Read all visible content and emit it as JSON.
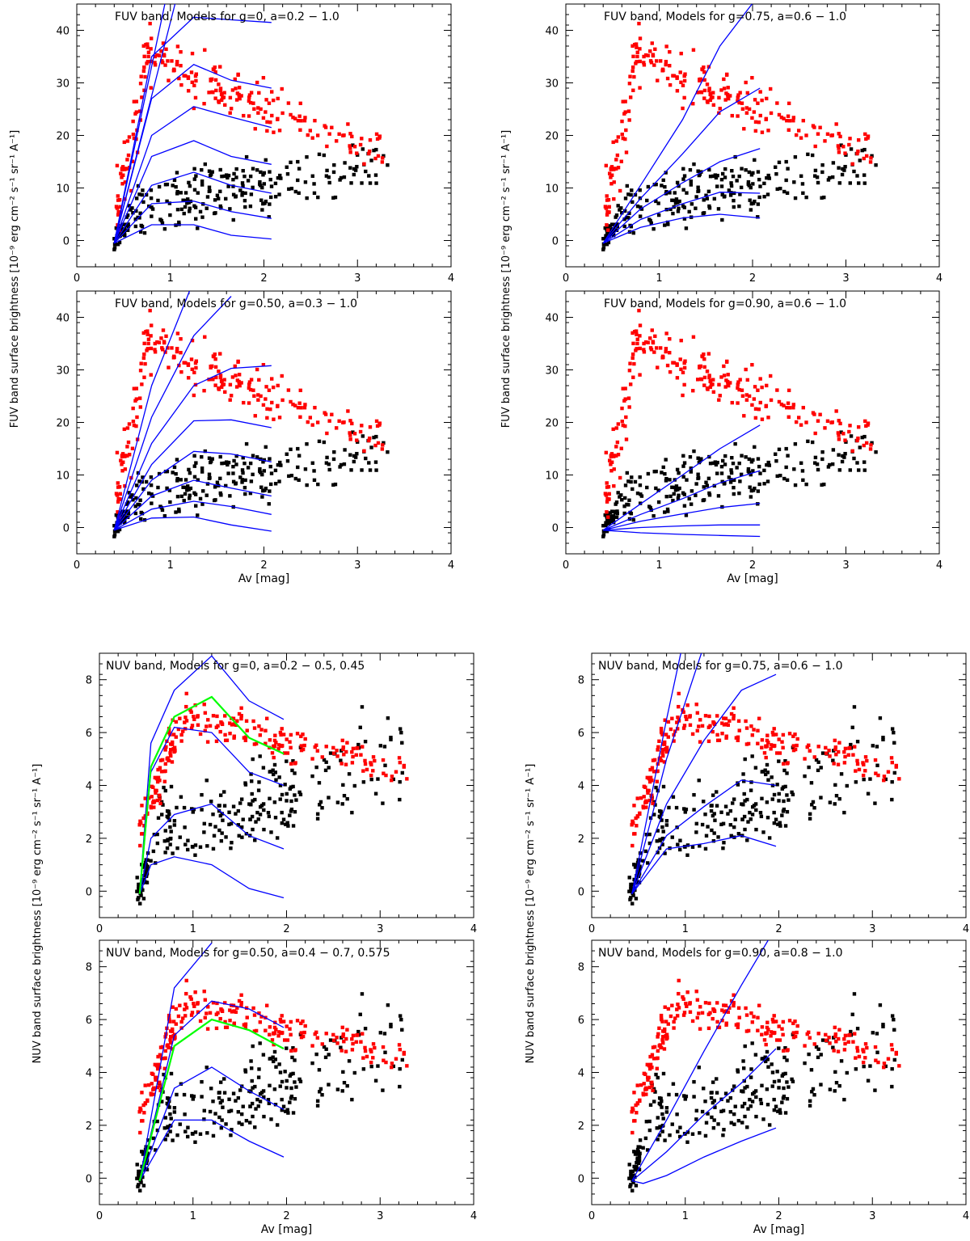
{
  "figure": {
    "fuv_ylabel": "FUV band surface brightness [10⁻⁹ erg cm⁻² s⁻¹ sr⁻¹ A⁻¹]",
    "nuv_ylabel": "NUV band surface brightness [10⁻⁹ erg cm⁻² s⁻¹ sr⁻¹ A⁻¹]",
    "xlabel": "Av [mag]",
    "colors": {
      "observed_red": "#ff0000",
      "observed_black": "#000000",
      "model_blue": "#0000ff",
      "model_green": "#00ff00"
    }
  },
  "chart_data": [
    {
      "type": "scatter",
      "title": "FUV band, Models for g=0, a=0.2 − 1.0",
      "xlabel": "",
      "ylabel": "FUV band surface brightness [10⁻⁹ erg cm⁻² s⁻¹ sr⁻¹ A⁻¹]",
      "xlim": [
        0,
        4
      ],
      "ylim": [
        -5,
        45
      ],
      "xticks": [
        "0",
        "1",
        "2",
        "3",
        "4"
      ],
      "yticks": [
        "0",
        "10",
        "20",
        "30",
        "40"
      ],
      "ytick_values": [
        0,
        10,
        20,
        30,
        40
      ],
      "model_lines": [
        {
          "x": [
            0.4,
            1.0
          ],
          "y": [
            -0.5,
            50
          ]
        },
        {
          "x": [
            0.4,
            1.05,
            1.25
          ],
          "y": [
            -0.5,
            45,
            48
          ]
        },
        {
          "x": [
            0.4,
            0.8,
            1.25,
            1.65,
            2.08
          ],
          "y": [
            -0.5,
            35,
            42.5,
            42,
            41.5
          ]
        },
        {
          "x": [
            0.4,
            0.8,
            1.25,
            1.65,
            2.08
          ],
          "y": [
            -0.5,
            27,
            33.5,
            30.5,
            29
          ]
        },
        {
          "x": [
            0.4,
            0.8,
            1.25,
            1.65,
            2.08
          ],
          "y": [
            -0.5,
            20,
            25.5,
            23.5,
            21.5
          ]
        },
        {
          "x": [
            0.4,
            0.8,
            1.25,
            1.65,
            2.08
          ],
          "y": [
            -0.5,
            16,
            19,
            16,
            14.5
          ]
        },
        {
          "x": [
            0.4,
            0.8,
            1.25,
            1.65,
            2.08
          ],
          "y": [
            -0.5,
            10.5,
            13,
            10.5,
            9
          ]
        },
        {
          "x": [
            0.4,
            0.8,
            1.25,
            1.65,
            2.08
          ],
          "y": [
            -0.5,
            7,
            7.5,
            5.5,
            4.2
          ]
        },
        {
          "x": [
            0.4,
            0.8,
            1.25,
            1.65,
            2.08
          ],
          "y": [
            -0.5,
            3,
            3,
            1,
            0.3
          ]
        }
      ],
      "green_line": null
    },
    {
      "type": "scatter",
      "title": "FUV band, Models for g=0.75, a=0.6 − 1.0",
      "xlabel": "",
      "ylabel": "",
      "xlim": [
        0,
        4
      ],
      "ylim": [
        -5,
        45
      ],
      "xticks": [
        "0",
        "1",
        "2",
        "3",
        "4"
      ],
      "yticks": [
        "0",
        "10",
        "20",
        "30",
        "40"
      ],
      "ytick_values": [
        0,
        10,
        20,
        30,
        40
      ],
      "model_lines": [
        {
          "x": [
            0.4,
            0.8,
            1.25,
            1.65,
            2.08
          ],
          "y": [
            -0.5,
            10.5,
            23,
            37,
            47
          ]
        },
        {
          "x": [
            0.4,
            0.8,
            1.25,
            1.65,
            2.08
          ],
          "y": [
            -0.5,
            8,
            16.5,
            24.5,
            29
          ]
        },
        {
          "x": [
            0.4,
            0.8,
            1.25,
            1.65,
            2.08
          ],
          "y": [
            -0.5,
            6,
            11,
            15,
            17.5
          ]
        },
        {
          "x": [
            0.4,
            0.8,
            1.25,
            1.65,
            2.08
          ],
          "y": [
            -0.5,
            4,
            7,
            9.2,
            9
          ]
        },
        {
          "x": [
            0.4,
            0.8,
            1.25,
            1.65,
            2.08
          ],
          "y": [
            -0.5,
            2.5,
            4.3,
            5,
            4.3
          ]
        }
      ],
      "green_line": null
    },
    {
      "type": "scatter",
      "title": "FUV band, Models for g=0.50, a=0.3 − 1.0",
      "xlabel": "Av [mag]",
      "ylabel": "",
      "xlim": [
        0,
        4
      ],
      "ylim": [
        -5,
        45
      ],
      "xticks": [
        "0",
        "1",
        "2",
        "3",
        "4"
      ],
      "yticks": [
        "0",
        "10",
        "20",
        "30",
        "40"
      ],
      "ytick_values": [
        0,
        10,
        20,
        30,
        40
      ],
      "model_lines": [
        {
          "x": [
            0.4,
            0.8,
            1.25
          ],
          "y": [
            -0.5,
            27,
            47
          ]
        },
        {
          "x": [
            0.4,
            0.8,
            1.25,
            1.65
          ],
          "y": [
            -0.5,
            21,
            36.5,
            44
          ]
        },
        {
          "x": [
            0.4,
            0.8,
            1.25,
            1.65,
            2.08
          ],
          "y": [
            -0.5,
            16,
            27,
            30.3,
            30.8
          ]
        },
        {
          "x": [
            0.4,
            0.8,
            1.25,
            1.65,
            2.08
          ],
          "y": [
            -0.5,
            12,
            20.3,
            20.5,
            19
          ]
        },
        {
          "x": [
            0.4,
            0.8,
            1.25,
            1.65,
            2.08
          ],
          "y": [
            -0.5,
            9,
            14.5,
            14,
            12.5
          ]
        },
        {
          "x": [
            0.4,
            0.8,
            1.25,
            1.65,
            2.08
          ],
          "y": [
            -0.5,
            6,
            9,
            7.5,
            6
          ]
        },
        {
          "x": [
            0.4,
            0.8,
            1.25,
            1.65,
            2.08
          ],
          "y": [
            -0.5,
            3.5,
            5,
            4,
            2.5
          ]
        },
        {
          "x": [
            0.4,
            0.8,
            1.25,
            1.65,
            2.08
          ],
          "y": [
            -0.5,
            1.8,
            2,
            0.5,
            -0.7
          ]
        }
      ],
      "green_line": null
    },
    {
      "type": "scatter",
      "title": "FUV band, Models for g=0.90, a=0.6 − 1.0",
      "xlabel": "Av [mag]",
      "ylabel": "",
      "xlim": [
        0,
        4
      ],
      "ylim": [
        -5,
        45
      ],
      "xticks": [
        "0",
        "1",
        "2",
        "3",
        "4"
      ],
      "yticks": [
        "0",
        "10",
        "20",
        "30",
        "40"
      ],
      "ytick_values": [
        0,
        10,
        20,
        30,
        40
      ],
      "model_lines": [
        {
          "x": [
            0.4,
            0.8,
            1.25,
            1.65,
            2.08
          ],
          "y": [
            -0.5,
            4.5,
            10,
            15,
            19.5
          ]
        },
        {
          "x": [
            0.4,
            0.8,
            1.25,
            1.65,
            2.08
          ],
          "y": [
            -0.5,
            2.5,
            5.5,
            8.5,
            10.8
          ]
        },
        {
          "x": [
            0.4,
            0.8,
            1.25,
            1.65,
            2.08
          ],
          "y": [
            -0.5,
            1.2,
            2.6,
            3.8,
            4.6
          ]
        },
        {
          "x": [
            0.4,
            0.8,
            1.25,
            1.65,
            2.08
          ],
          "y": [
            -0.5,
            0,
            0.3,
            0.5,
            0.5
          ]
        },
        {
          "x": [
            0.4,
            0.8,
            1.25,
            1.65,
            2.08
          ],
          "y": [
            -0.5,
            -1,
            -1.3,
            -1.5,
            -1.7
          ]
        }
      ],
      "green_line": null
    },
    {
      "type": "scatter",
      "title": "NUV band, Models for g=0, a=0.2 − 0.5, 0.45",
      "xlabel": "",
      "ylabel": "NUV band surface brightness [10⁻⁹ erg cm⁻² s⁻¹ sr⁻¹ A⁻¹]",
      "xlim": [
        0,
        4
      ],
      "ylim": [
        -1,
        9
      ],
      "xticks": [
        "0",
        "1",
        "2",
        "3",
        "4"
      ],
      "yticks": [
        "0",
        "2",
        "4",
        "6",
        "8"
      ],
      "ytick_values": [
        0,
        2,
        4,
        6,
        8
      ],
      "model_lines": [
        {
          "x": [
            0.43,
            0.55,
            0.8,
            1.2,
            1.6,
            1.97
          ],
          "y": [
            -0.1,
            5.6,
            7.6,
            8.9,
            7.2,
            6.5
          ]
        },
        {
          "x": [
            0.43,
            0.55,
            0.8,
            1.2,
            1.6,
            1.97
          ],
          "y": [
            -0.1,
            4.5,
            6.2,
            6.0,
            4.5,
            4.0
          ]
        },
        {
          "x": [
            0.43,
            0.55,
            0.8,
            1.2,
            1.6,
            1.97
          ],
          "y": [
            -0.1,
            2.0,
            2.9,
            3.3,
            2.1,
            1.6
          ]
        },
        {
          "x": [
            0.43,
            0.55,
            0.8,
            1.2,
            1.6,
            1.97
          ],
          "y": [
            -0.1,
            1.0,
            1.3,
            1.0,
            0.1,
            -0.25
          ]
        }
      ],
      "green_line": {
        "x": [
          0.43,
          0.55,
          0.8,
          1.2,
          1.6,
          1.97
        ],
        "y": [
          -0.1,
          4.7,
          6.6,
          7.35,
          5.8,
          5.2
        ]
      }
    },
    {
      "type": "scatter",
      "title": "NUV band, Models for g=0.75, a=0.6 − 1.0",
      "xlabel": "",
      "ylabel": "",
      "xlim": [
        0,
        4
      ],
      "ylim": [
        -1,
        9
      ],
      "xticks": [
        "0",
        "1",
        "2",
        "3",
        "4"
      ],
      "yticks": [
        "0",
        "2",
        "4",
        "6",
        "8"
      ],
      "ytick_values": [
        0,
        2,
        4,
        6,
        8
      ],
      "model_lines": [
        {
          "x": [
            0.43,
            0.8,
            1.0
          ],
          "y": [
            -0.1,
            6.5,
            9.8
          ]
        },
        {
          "x": [
            0.43,
            0.8,
            1.2
          ],
          "y": [
            -0.1,
            5,
            9.3
          ]
        },
        {
          "x": [
            0.43,
            0.8,
            1.2,
            1.6,
            1.97
          ],
          "y": [
            -0.1,
            3.3,
            5.7,
            7.6,
            8.2
          ]
        },
        {
          "x": [
            0.43,
            0.8,
            1.2,
            1.6,
            1.97
          ],
          "y": [
            -0.1,
            2.1,
            3.2,
            4.2,
            4.0
          ]
        },
        {
          "x": [
            0.43,
            0.8,
            1.2,
            1.6,
            1.97
          ],
          "y": [
            -0.1,
            1.6,
            1.8,
            2.1,
            1.7
          ]
        }
      ],
      "green_line": null
    },
    {
      "type": "scatter",
      "title": "NUV band, Models for g=0.50, a=0.4 − 0.7, 0.575",
      "xlabel": "Av [mag]",
      "ylabel": "",
      "xlim": [
        0,
        4
      ],
      "ylim": [
        -1,
        9
      ],
      "xticks": [
        "0",
        "1",
        "2",
        "3",
        "4"
      ],
      "yticks": [
        "0",
        "2",
        "4",
        "6",
        "8"
      ],
      "ytick_values": [
        0,
        2,
        4,
        6,
        8
      ],
      "model_lines": [
        {
          "x": [
            0.43,
            0.8,
            1.2
          ],
          "y": [
            -0.1,
            7.2,
            8.9
          ]
        },
        {
          "x": [
            0.43,
            0.8,
            1.2,
            1.6,
            1.97
          ],
          "y": [
            -0.1,
            5.4,
            6.7,
            6.4,
            5.7
          ]
        },
        {
          "x": [
            0.43,
            0.8,
            1.2,
            1.6,
            1.97
          ],
          "y": [
            -0.1,
            3.4,
            4.2,
            3.3,
            2.6
          ]
        },
        {
          "x": [
            0.43,
            0.8,
            1.2,
            1.6,
            1.97
          ],
          "y": [
            -0.1,
            2.2,
            2.2,
            1.4,
            0.8
          ]
        }
      ],
      "green_line": {
        "x": [
          0.43,
          0.8,
          1.2,
          1.6,
          1.97
        ],
        "y": [
          -0.1,
          5.0,
          6.0,
          5.6,
          4.9
        ]
      }
    },
    {
      "type": "scatter",
      "title": "NUV band, Models for g=0.90, a=0.8 − 1.0",
      "xlabel": "Av [mag]",
      "ylabel": "",
      "xlim": [
        0,
        4
      ],
      "ylim": [
        -1,
        9
      ],
      "xticks": [
        "0",
        "1",
        "2",
        "3",
        "4"
      ],
      "yticks": [
        "0",
        "2",
        "4",
        "6",
        "8"
      ],
      "ytick_values": [
        0,
        2,
        4,
        6,
        8
      ],
      "model_lines": [
        {
          "x": [
            0.43,
            0.8,
            1.2,
            1.6,
            1.97
          ],
          "y": [
            -0.1,
            2.2,
            4.8,
            7.3,
            9.5
          ]
        },
        {
          "x": [
            0.43,
            0.8,
            1.2,
            1.6,
            1.97
          ],
          "y": [
            -0.1,
            1.0,
            2.4,
            3.6,
            4.9
          ]
        },
        {
          "x": [
            0.43,
            0.55,
            0.8,
            1.2,
            1.6,
            1.97
          ],
          "y": [
            -0.1,
            -0.2,
            0.1,
            0.8,
            1.4,
            1.9
          ]
        }
      ],
      "green_line": null
    }
  ]
}
